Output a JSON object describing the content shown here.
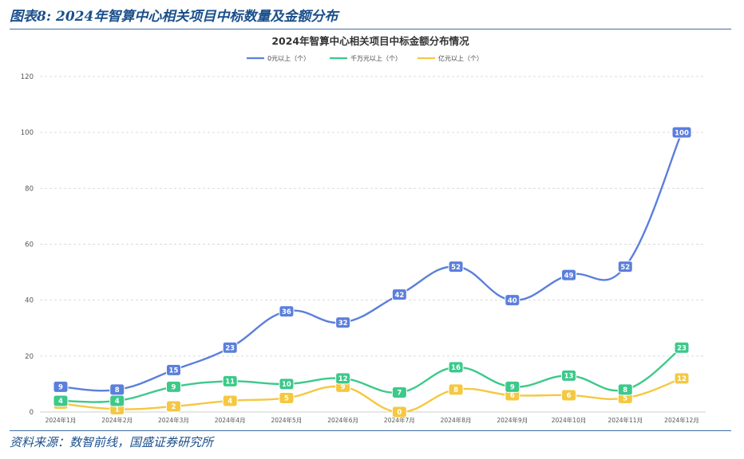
{
  "figure": {
    "title": "图表8: 2024年智算中心相关项目中标数量及金额分布",
    "source": "资料来源：数智前线，国盛证券研究所"
  },
  "chart_data": {
    "type": "line",
    "title": "2024年智算中心相关项目中标金额分布情况",
    "xlabel": "",
    "ylabel": "",
    "categories": [
      "2024年1月",
      "2024年2月",
      "2024年3月",
      "2024年4月",
      "2024年5月",
      "2024年6月",
      "2024年7月",
      "2024年8月",
      "2024年9月",
      "2024年10月",
      "2024年11月",
      "2024年12月"
    ],
    "series": [
      {
        "name": "0元以上（个）",
        "color": "#5b7fdb",
        "values": [
          9,
          8,
          15,
          23,
          36,
          32,
          42,
          52,
          40,
          49,
          52,
          100
        ]
      },
      {
        "name": "千万元以上（个）",
        "color": "#3cc98a",
        "values": [
          4,
          4,
          9,
          11,
          10,
          12,
          7,
          16,
          9,
          13,
          8,
          23
        ]
      },
      {
        "name": "亿元以上（个）",
        "color": "#f5c842",
        "values": [
          3,
          1,
          2,
          4,
          5,
          9,
          0,
          8,
          6,
          6,
          5,
          12
        ]
      }
    ],
    "ylim": [
      0,
      120
    ],
    "yticks": [
      0,
      20,
      40,
      60,
      80,
      100,
      120
    ],
    "grid": true,
    "legend_position": "top-center",
    "curve": "smooth",
    "data_labels": true
  }
}
